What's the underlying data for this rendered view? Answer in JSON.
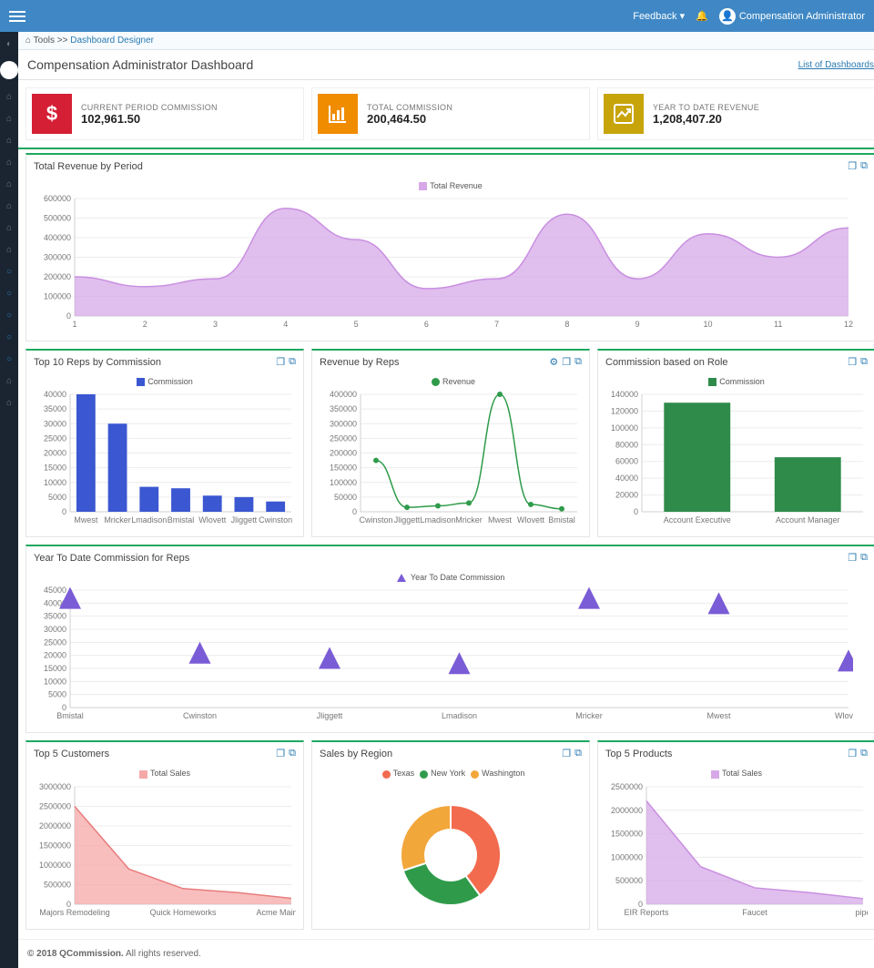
{
  "topbar": {
    "feedback_label": "Feedback",
    "user_label": "Compensation Administrator"
  },
  "breadcrumb": {
    "root": "Tools",
    "current": "Dashboard Designer"
  },
  "header": {
    "title": "Compensation Administrator Dashboard",
    "list_link": "List of Dashboards"
  },
  "kpi": [
    {
      "icon": "$",
      "bg": "#d51f35",
      "label": "CURRENT PERIOD COMMISSION",
      "value": "102,961.50"
    },
    {
      "icon": "bar",
      "bg": "#f08c00",
      "label": "TOTAL COMMISSION",
      "value": "200,464.50"
    },
    {
      "icon": "trend",
      "bg": "#c7a40a",
      "label": "YEAR TO DATE REVENUE",
      "value": "1,208,407.20"
    }
  ],
  "rev_period": {
    "title": "Total Revenue by Period",
    "legend": "Total Revenue",
    "type": "area",
    "fill": "#d6a8e8",
    "stroke": "#c98fe0",
    "ymax": 600000,
    "ystep": 100000,
    "x": [
      1,
      2,
      3,
      4,
      5,
      6,
      7,
      8,
      9,
      10,
      11,
      12
    ],
    "y": [
      200000,
      150000,
      190000,
      550000,
      390000,
      140000,
      190000,
      520000,
      190000,
      420000,
      300000,
      450000
    ]
  },
  "top_reps": {
    "title": "Top 10 Reps by Commission",
    "legend": "Commission",
    "type": "bar",
    "color": "#3b57d1",
    "ymax": 40000,
    "ystep": 5000,
    "cats": [
      "Mwest",
      "Mricker",
      "Lmadison",
      "Bmistal",
      "Wlovett",
      "Jliggett",
      "Cwinston"
    ],
    "vals": [
      40000,
      30000,
      8500,
      8000,
      5500,
      5000,
      3500
    ]
  },
  "rev_reps": {
    "title": "Revenue by Reps",
    "legend": "Revenue",
    "type": "line",
    "color": "#2f9b4a",
    "ymax": 400000,
    "ystep": 50000,
    "cats": [
      "Cwinston",
      "Jliggett",
      "Lmadison",
      "Mricker",
      "Mwest",
      "Wlovett",
      "Bmistal"
    ],
    "vals": [
      175000,
      15000,
      20000,
      30000,
      400000,
      25000,
      10000
    ]
  },
  "role": {
    "title": "Commission based on Role",
    "legend": "Commission",
    "type": "bar",
    "color": "#2f8b4a",
    "ymax": 140000,
    "ystep": 20000,
    "cats": [
      "Account Executive",
      "Account Manager"
    ],
    "vals": [
      130000,
      65000
    ]
  },
  "ytd": {
    "title": "Year To Date Commission for Reps",
    "legend": "Year To Date Commission",
    "type": "scatter-triangle",
    "color": "#7a5cd6",
    "ymax": 45000,
    "ystep": 5000,
    "cats": [
      "Bmistal",
      "Cwinston",
      "Jliggett",
      "Lmadison",
      "Mricker",
      "Mwest",
      "Wlovett"
    ],
    "vals": [
      42000,
      21000,
      19000,
      17000,
      42000,
      40000,
      18000
    ]
  },
  "top_cust": {
    "title": "Top 5 Customers",
    "legend": "Total Sales",
    "type": "area",
    "fill": "#f5a8a8",
    "stroke": "#e87d7d",
    "ymax": 3000000,
    "ystep": 500000,
    "cats": [
      "Majors Remodeling",
      "",
      "Quick Homeworks",
      "",
      "Acme Maintenance"
    ],
    "vals": [
      2500000,
      900000,
      400000,
      300000,
      150000
    ]
  },
  "region": {
    "title": "Sales by Region",
    "type": "donut",
    "items": [
      {
        "label": "Texas",
        "color": "#f26b4e",
        "value": 40
      },
      {
        "label": "New York",
        "color": "#2f9b4a",
        "value": 30
      },
      {
        "label": "Washington",
        "color": "#f2a73b",
        "value": 30
      }
    ]
  },
  "top_prod": {
    "title": "Top 5 Products",
    "legend": "Total Sales",
    "type": "area",
    "fill": "#d6a8e8",
    "stroke": "#c98fe0",
    "ymax": 2500000,
    "ystep": 500000,
    "cats": [
      "EIR Reports",
      "",
      "Faucet",
      "",
      "pipe"
    ],
    "vals": [
      2200000,
      800000,
      350000,
      250000,
      120000
    ]
  },
  "footer": {
    "copyright": "© 2018 QCommission.",
    "rights": " All rights reserved."
  }
}
